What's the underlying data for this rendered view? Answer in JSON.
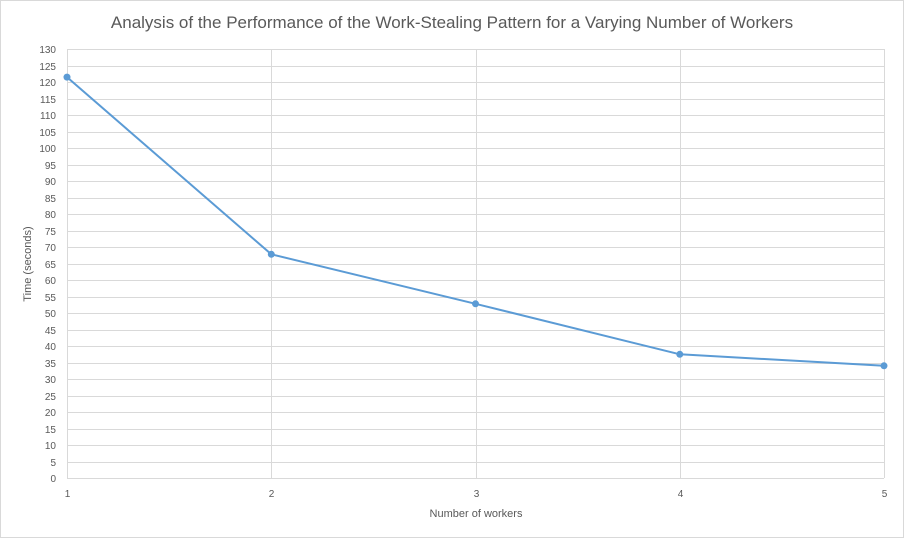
{
  "chart_data": {
    "type": "line",
    "title": "Analysis of the Performance of the Work-Stealing Pattern for a Varying Number of Workers",
    "xlabel": "Number of workers",
    "ylabel": "Time (seconds)",
    "x": [
      1,
      2,
      3,
      4,
      5
    ],
    "series": [
      {
        "values": [
          121.5,
          67.8,
          52.8,
          37.5,
          34.0
        ]
      }
    ],
    "ylim": [
      0,
      130
    ],
    "ystep": 5,
    "grid": true,
    "legend": "none",
    "line_color": "#5b9bd5"
  }
}
